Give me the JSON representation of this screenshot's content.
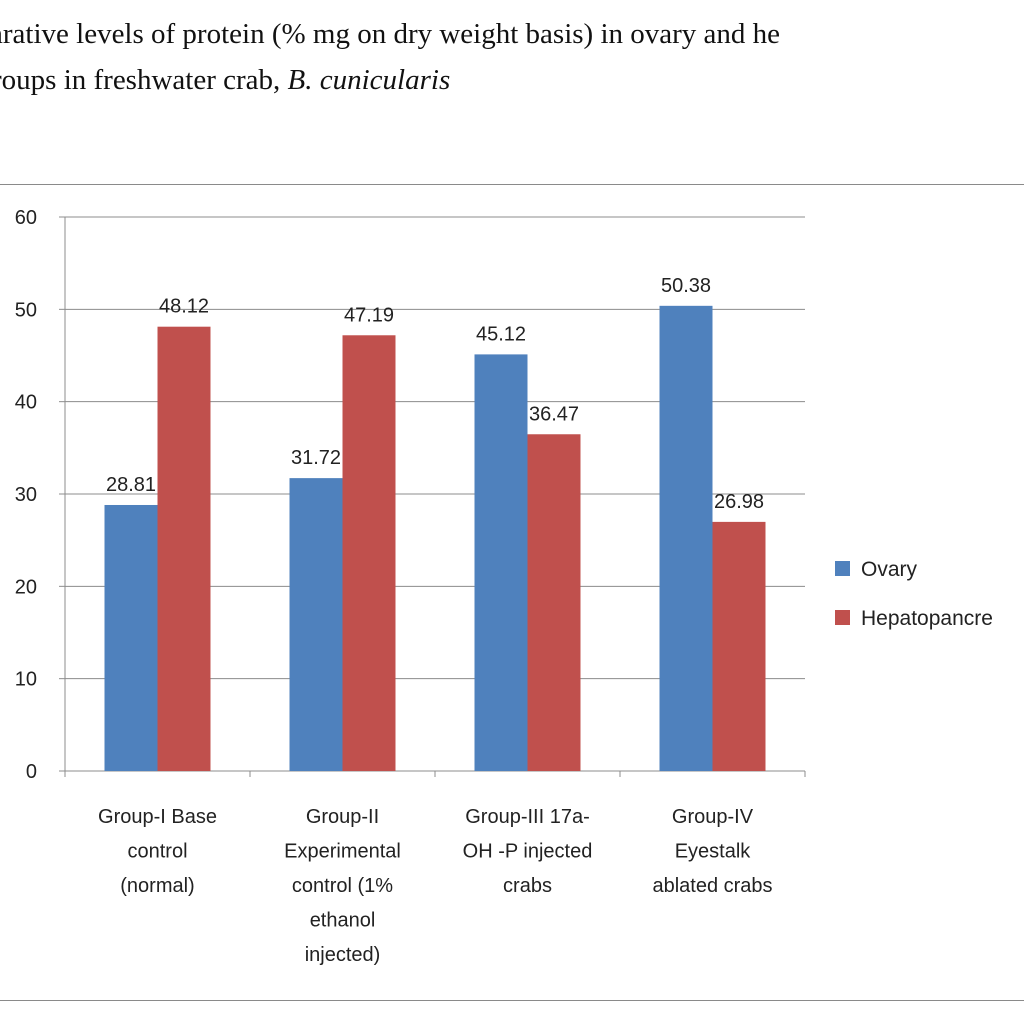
{
  "caption": {
    "line1": "arative levels of protein (% mg on dry weight basis) in ovary and he",
    "line2_prefix": "roups in freshwater crab, ",
    "line2_species": "B. cunicularis"
  },
  "chart_data": {
    "type": "bar",
    "categories": [
      [
        "Group-I Base",
        "control",
        "(normal)"
      ],
      [
        "Group-II",
        "Experimental",
        "control (1%",
        "ethanol",
        "injected)"
      ],
      [
        "Group-III 17a-",
        "OH -P injected",
        "crabs"
      ],
      [
        "Group-IV",
        "Eyestalk",
        "ablated crabs"
      ]
    ],
    "series": [
      {
        "name": "Ovary",
        "color": "#4f81bd",
        "values": [
          28.81,
          31.72,
          45.12,
          50.38
        ]
      },
      {
        "name": "Hepatopancreas",
        "color": "#c0504d",
        "values": [
          48.12,
          47.19,
          36.47,
          26.98
        ]
      }
    ],
    "data_labels": [
      [
        "28.81",
        "31.72",
        "45.12",
        "50.38"
      ],
      [
        "48.12",
        "47.19",
        "36.47",
        "26.98"
      ]
    ],
    "legend_labels": [
      "Ovary",
      "Hepatopancre"
    ],
    "ylim": [
      0,
      60
    ],
    "yticks": [
      0,
      10,
      20,
      30,
      40,
      50,
      60
    ],
    "grid": true,
    "legend_position": "right"
  }
}
